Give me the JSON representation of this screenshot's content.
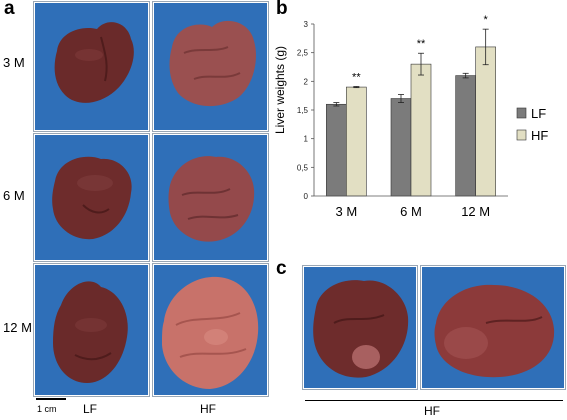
{
  "panels": {
    "a": "a",
    "b": "b",
    "c": "c"
  },
  "panel_a": {
    "rows": [
      "3 M",
      "6 M",
      "12 M"
    ],
    "columns": [
      "LF",
      "HF"
    ],
    "scale_bar": "1 cm"
  },
  "panel_c": {
    "group_label": "HF"
  },
  "colors": {
    "photo_background": "#2f6fb8",
    "liver_lf": "#6a2a2a",
    "liver_hf": "#9a5050",
    "bar_lf": "#7b7b7b",
    "bar_hf": "#e2dfc3"
  },
  "chart_data": {
    "type": "bar",
    "ylabel": "Liver weights (g)",
    "ylim": [
      0,
      3
    ],
    "yticks": [
      "0",
      "0,5",
      "1",
      "1,5",
      "2",
      "2,5",
      "3"
    ],
    "categories": [
      "3 M",
      "6 M",
      "12 M"
    ],
    "legend_position": "right",
    "series": [
      {
        "name": "LF",
        "values": [
          1.6,
          1.7,
          2.1
        ],
        "errors": [
          0.03,
          0.07,
          0.04
        ]
      },
      {
        "name": "HF",
        "values": [
          1.9,
          2.3,
          2.6
        ],
        "errors": [
          0.01,
          0.19,
          0.31
        ]
      }
    ],
    "annotations": [
      "**",
      "**",
      "*"
    ]
  }
}
